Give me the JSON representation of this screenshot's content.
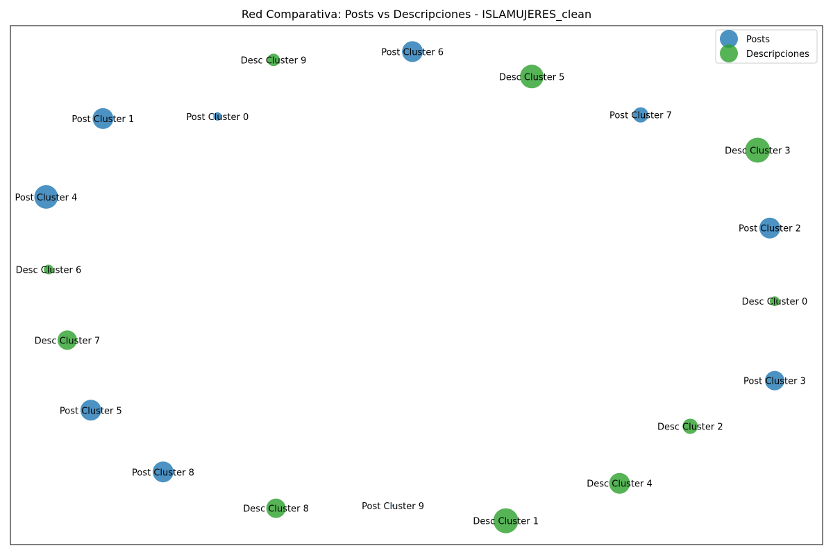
{
  "chart_data": {
    "type": "scatter",
    "title": "Red Comparativa: Posts vs Descripciones - ISLAMUJERES_clean",
    "xlabel": "",
    "ylabel": "",
    "xlim": [
      0,
      1
    ],
    "ylim": [
      0,
      1
    ],
    "grid": false,
    "axis_ticks": false,
    "legend_placement": "top-right",
    "colors": {
      "posts": "#1f77b4",
      "descripciones": "#2ca02c"
    },
    "series": [
      {
        "name": "Posts",
        "points": [
          {
            "label": "Post Cluster 0",
            "x": 0.255,
            "y": 0.825,
            "size": 12
          },
          {
            "label": "Post Cluster 1",
            "x": 0.114,
            "y": 0.821,
            "size": 30
          },
          {
            "label": "Post Cluster 2",
            "x": 0.935,
            "y": 0.61,
            "size": 30
          },
          {
            "label": "Post Cluster 3",
            "x": 0.941,
            "y": 0.316,
            "size": 28
          },
          {
            "label": "Post Cluster 4",
            "x": 0.044,
            "y": 0.67,
            "size": 34
          },
          {
            "label": "Post Cluster 5",
            "x": 0.099,
            "y": 0.259,
            "size": 30
          },
          {
            "label": "Post Cluster 6",
            "x": 0.495,
            "y": 0.95,
            "size": 30
          },
          {
            "label": "Post Cluster 7",
            "x": 0.776,
            "y": 0.828,
            "size": 22
          },
          {
            "label": "Post Cluster 8",
            "x": 0.188,
            "y": 0.14,
            "size": 30
          },
          {
            "label": "Post Cluster 9",
            "x": 0.471,
            "y": 0.075,
            "size": 3
          }
        ]
      },
      {
        "name": "Descripciones",
        "points": [
          {
            "label": "Desc Cluster 0",
            "x": 0.941,
            "y": 0.469,
            "size": 14
          },
          {
            "label": "Desc Cluster 1",
            "x": 0.61,
            "y": 0.046,
            "size": 36
          },
          {
            "label": "Desc Cluster 2",
            "x": 0.837,
            "y": 0.228,
            "size": 22
          },
          {
            "label": "Desc Cluster 3",
            "x": 0.92,
            "y": 0.76,
            "size": 36
          },
          {
            "label": "Desc Cluster 4",
            "x": 0.75,
            "y": 0.118,
            "size": 30
          },
          {
            "label": "Desc Cluster 5",
            "x": 0.642,
            "y": 0.902,
            "size": 34
          },
          {
            "label": "Desc Cluster 6",
            "x": 0.047,
            "y": 0.53,
            "size": 14
          },
          {
            "label": "Desc Cluster 7",
            "x": 0.07,
            "y": 0.394,
            "size": 28
          },
          {
            "label": "Desc Cluster 8",
            "x": 0.327,
            "y": 0.07,
            "size": 28
          },
          {
            "label": "Desc Cluster 9",
            "x": 0.324,
            "y": 0.934,
            "size": 18
          }
        ]
      }
    ]
  }
}
